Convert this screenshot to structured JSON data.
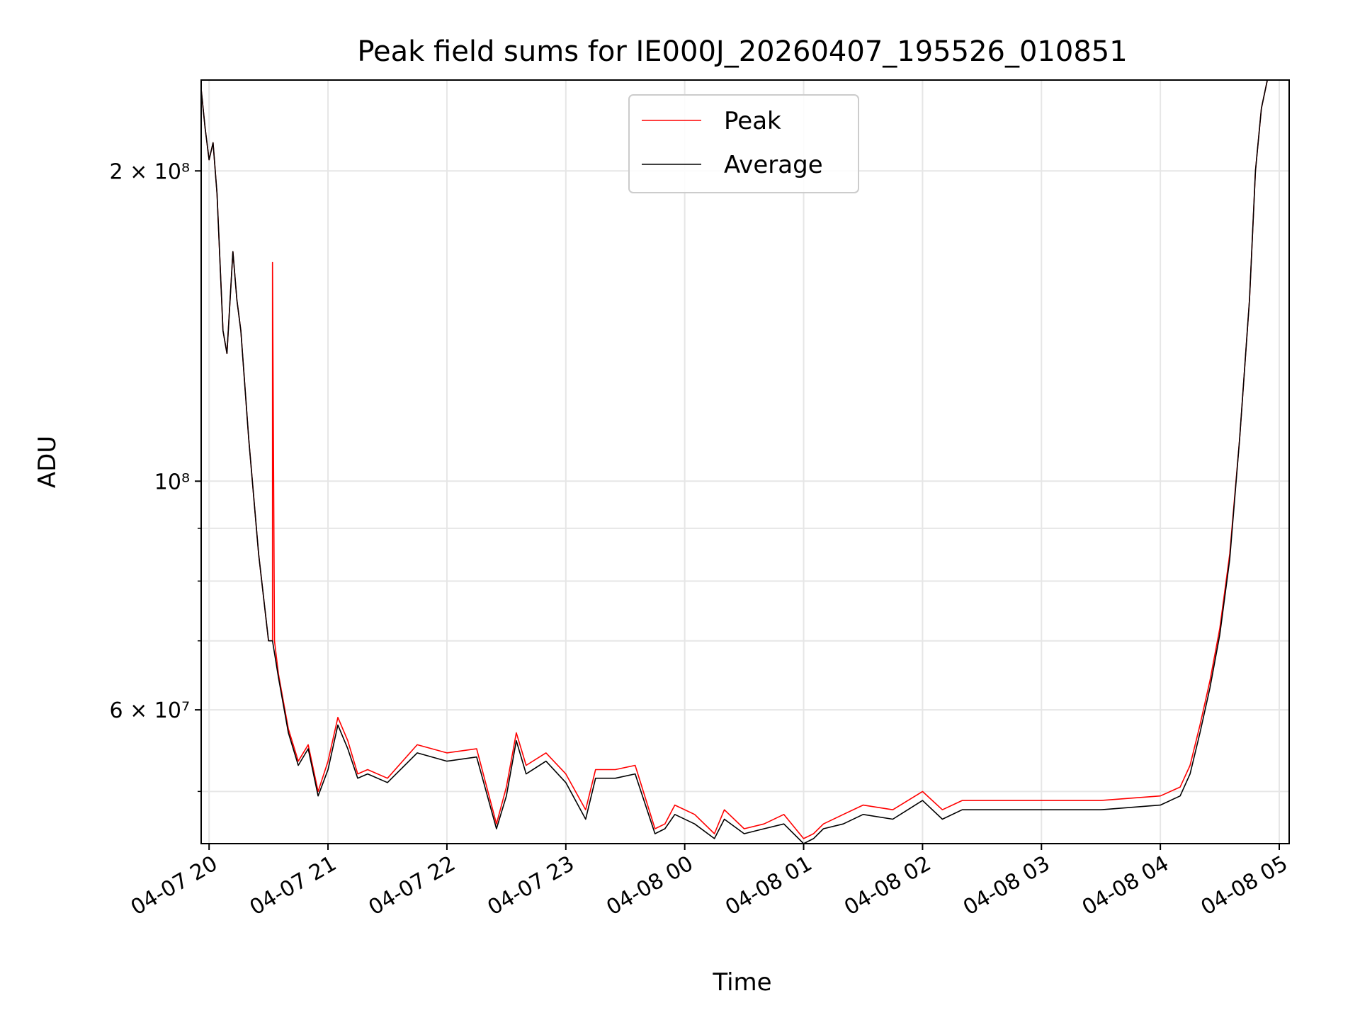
{
  "chart_data": {
    "type": "line",
    "title": "Peak field sums for IE000J_20260407_195526_010851",
    "xlabel": "Time",
    "ylabel": "ADU",
    "y_scale": "log",
    "ylim": [
      44500000,
      245000000
    ],
    "xlim": [
      "2026-04-07 19:56",
      "2026-04-08 05:05"
    ],
    "grid": true,
    "legend_position": "upper center",
    "x_ticks": [
      {
        "t": "2026-04-07 20:00",
        "label": "04-07 20"
      },
      {
        "t": "2026-04-07 21:00",
        "label": "04-07 21"
      },
      {
        "t": "2026-04-07 22:00",
        "label": "04-07 22"
      },
      {
        "t": "2026-04-07 23:00",
        "label": "04-07 23"
      },
      {
        "t": "2026-04-08 00:00",
        "label": "04-08 00"
      },
      {
        "t": "2026-04-08 01:00",
        "label": "04-08 01"
      },
      {
        "t": "2026-04-08 02:00",
        "label": "04-08 02"
      },
      {
        "t": "2026-04-08 03:00",
        "label": "04-08 03"
      },
      {
        "t": "2026-04-08 04:00",
        "label": "04-08 04"
      },
      {
        "t": "2026-04-08 05:00",
        "label": "04-08 05"
      }
    ],
    "y_ticks_major": [
      {
        "v": 200000000,
        "label": "2 × 10⁸"
      },
      {
        "v": 100000000,
        "label": "10⁸"
      },
      {
        "v": 60000000,
        "label": "6 × 10⁷"
      }
    ],
    "y_ticks_minor": [
      50000000,
      70000000,
      80000000,
      90000000
    ],
    "series": [
      {
        "name": "Peak",
        "color": "#ff0000",
        "x": [
          "2026-04-07 19:56",
          "2026-04-07 19:58",
          "2026-04-07 20:00",
          "2026-04-07 20:02",
          "2026-04-07 20:04",
          "2026-04-07 20:07",
          "2026-04-07 20:09",
          "2026-04-07 20:12",
          "2026-04-07 20:14",
          "2026-04-07 20:16",
          "2026-04-07 20:20",
          "2026-04-07 20:25",
          "2026-04-07 20:30",
          "2026-04-07 20:32",
          "2026-04-07 20:32",
          "2026-04-07 20:33",
          "2026-04-07 20:35",
          "2026-04-07 20:40",
          "2026-04-07 20:45",
          "2026-04-07 20:50",
          "2026-04-07 20:55",
          "2026-04-07 21:00",
          "2026-04-07 21:05",
          "2026-04-07 21:10",
          "2026-04-07 21:15",
          "2026-04-07 21:20",
          "2026-04-07 21:30",
          "2026-04-07 21:45",
          "2026-04-07 22:00",
          "2026-04-07 22:15",
          "2026-04-07 22:25",
          "2026-04-07 22:30",
          "2026-04-07 22:35",
          "2026-04-07 22:40",
          "2026-04-07 22:50",
          "2026-04-07 23:00",
          "2026-04-07 23:10",
          "2026-04-07 23:15",
          "2026-04-07 23:25",
          "2026-04-07 23:35",
          "2026-04-07 23:45",
          "2026-04-07 23:50",
          "2026-04-07 23:55",
          "2026-04-08 00:05",
          "2026-04-08 00:15",
          "2026-04-08 00:20",
          "2026-04-08 00:30",
          "2026-04-08 00:40",
          "2026-04-08 00:50",
          "2026-04-08 01:00",
          "2026-04-08 01:05",
          "2026-04-08 01:10",
          "2026-04-08 01:20",
          "2026-04-08 01:30",
          "2026-04-08 01:45",
          "2026-04-08 02:00",
          "2026-04-08 02:10",
          "2026-04-08 02:20",
          "2026-04-08 02:40",
          "2026-04-08 03:00",
          "2026-04-08 03:30",
          "2026-04-08 04:00",
          "2026-04-08 04:10",
          "2026-04-08 04:15",
          "2026-04-08 04:20",
          "2026-04-08 04:25",
          "2026-04-08 04:30",
          "2026-04-08 04:35",
          "2026-04-08 04:40",
          "2026-04-08 04:45",
          "2026-04-08 04:48",
          "2026-04-08 04:51",
          "2026-04-08 04:54"
        ],
        "y": [
          240000000,
          220000000,
          205000000,
          213000000,
          190000000,
          140000000,
          133000000,
          167000000,
          150000000,
          140000000,
          110000000,
          85000000,
          70000000,
          70000000,
          163000000,
          70000000,
          65000000,
          57500000,
          53500000,
          55500000,
          50000000,
          53500000,
          59000000,
          56000000,
          52000000,
          52500000,
          51500000,
          55500000,
          54500000,
          55000000,
          46500000,
          50500000,
          57000000,
          53000000,
          54500000,
          52000000,
          48000000,
          52500000,
          52500000,
          53000000,
          46000000,
          46500000,
          48500000,
          47500000,
          45500000,
          48000000,
          46000000,
          46500000,
          47500000,
          45000000,
          45500000,
          46500000,
          47500000,
          48500000,
          48000000,
          50000000,
          48000000,
          49000000,
          49000000,
          49000000,
          49000000,
          49500000,
          50500000,
          53000000,
          58000000,
          64000000,
          72000000,
          85000000,
          110000000,
          150000000,
          200000000,
          230000000,
          245000000
        ]
      },
      {
        "name": "Average",
        "color": "#000000",
        "x": [
          "2026-04-07 19:56",
          "2026-04-07 19:58",
          "2026-04-07 20:00",
          "2026-04-07 20:02",
          "2026-04-07 20:04",
          "2026-04-07 20:07",
          "2026-04-07 20:09",
          "2026-04-07 20:12",
          "2026-04-07 20:14",
          "2026-04-07 20:16",
          "2026-04-07 20:20",
          "2026-04-07 20:25",
          "2026-04-07 20:30",
          "2026-04-07 20:32",
          "2026-04-07 20:35",
          "2026-04-07 20:40",
          "2026-04-07 20:45",
          "2026-04-07 20:50",
          "2026-04-07 20:55",
          "2026-04-07 21:00",
          "2026-04-07 21:05",
          "2026-04-07 21:10",
          "2026-04-07 21:15",
          "2026-04-07 21:20",
          "2026-04-07 21:30",
          "2026-04-07 21:45",
          "2026-04-07 22:00",
          "2026-04-07 22:15",
          "2026-04-07 22:25",
          "2026-04-07 22:30",
          "2026-04-07 22:35",
          "2026-04-07 22:40",
          "2026-04-07 22:50",
          "2026-04-07 23:00",
          "2026-04-07 23:10",
          "2026-04-07 23:15",
          "2026-04-07 23:25",
          "2026-04-07 23:35",
          "2026-04-07 23:45",
          "2026-04-07 23:50",
          "2026-04-07 23:55",
          "2026-04-08 00:05",
          "2026-04-08 00:15",
          "2026-04-08 00:20",
          "2026-04-08 00:30",
          "2026-04-08 00:40",
          "2026-04-08 00:50",
          "2026-04-08 01:00",
          "2026-04-08 01:05",
          "2026-04-08 01:10",
          "2026-04-08 01:20",
          "2026-04-08 01:30",
          "2026-04-08 01:45",
          "2026-04-08 02:00",
          "2026-04-08 02:10",
          "2026-04-08 02:20",
          "2026-04-08 02:40",
          "2026-04-08 03:00",
          "2026-04-08 03:30",
          "2026-04-08 04:00",
          "2026-04-08 04:10",
          "2026-04-08 04:15",
          "2026-04-08 04:20",
          "2026-04-08 04:25",
          "2026-04-08 04:30",
          "2026-04-08 04:35",
          "2026-04-08 04:40",
          "2026-04-08 04:45",
          "2026-04-08 04:48",
          "2026-04-08 04:51",
          "2026-04-08 04:54"
        ],
        "y": [
          240000000,
          220000000,
          205000000,
          213000000,
          190000000,
          140000000,
          133000000,
          167000000,
          150000000,
          140000000,
          110000000,
          85000000,
          70000000,
          70000000,
          64500000,
          57000000,
          53000000,
          55000000,
          49500000,
          52500000,
          58000000,
          55000000,
          51500000,
          52000000,
          51000000,
          54500000,
          53500000,
          54000000,
          46000000,
          49500000,
          56000000,
          52000000,
          53500000,
          51000000,
          47000000,
          51500000,
          51500000,
          52000000,
          45500000,
          46000000,
          47500000,
          46500000,
          45000000,
          47000000,
          45500000,
          46000000,
          46500000,
          44500000,
          45000000,
          46000000,
          46500000,
          47500000,
          47000000,
          49000000,
          47000000,
          48000000,
          48000000,
          48000000,
          48000000,
          48500000,
          49500000,
          52000000,
          57000000,
          63000000,
          71000000,
          84000000,
          110000000,
          150000000,
          200000000,
          230000000,
          245000000
        ]
      }
    ]
  }
}
